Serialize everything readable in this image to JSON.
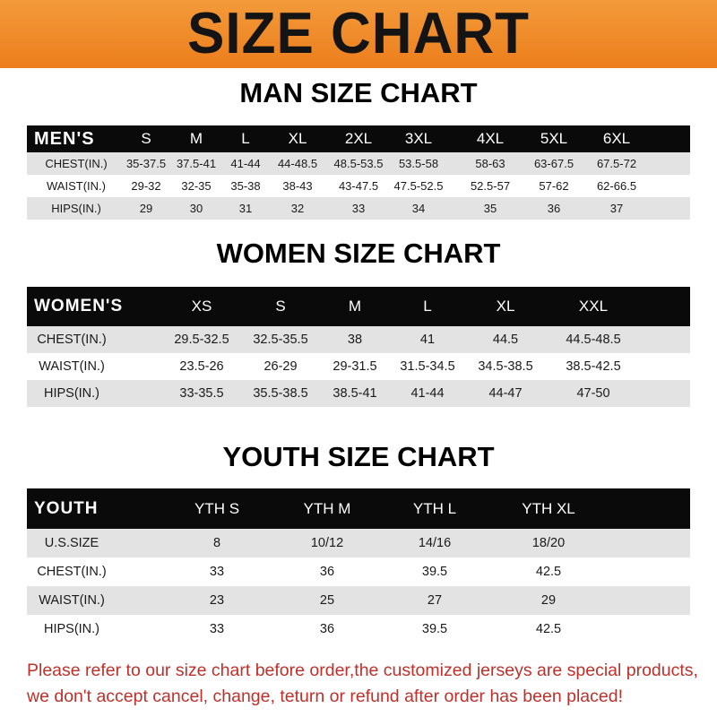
{
  "title": "SIZE CHART",
  "men": {
    "title": "MAN SIZE CHART",
    "header": [
      "MEN'S",
      "S",
      "M",
      "L",
      "XL",
      "2XL",
      "3XL",
      "4XL",
      "5XL",
      "6XL"
    ],
    "rows": [
      [
        "CHEST(IN.)",
        "35-37.5",
        "37.5-41",
        "41-44",
        "44-48.5",
        "48.5-53.5",
        "53.5-58",
        "58-63",
        "63-67.5",
        "67.5-72"
      ],
      [
        "WAIST(IN.)",
        "29-32",
        "32-35",
        "35-38",
        "38-43",
        "43-47.5",
        "47.5-52.5",
        "52.5-57",
        "57-62",
        "62-66.5"
      ],
      [
        "HIPS(IN.)",
        "29",
        "30",
        "31",
        "32",
        "33",
        "34",
        "35",
        "36",
        "37"
      ]
    ]
  },
  "women": {
    "title": "WOMEN SIZE CHART",
    "header": [
      "WOMEN'S",
      "XS",
      "S",
      "M",
      "L",
      "XL",
      "XXL"
    ],
    "rows": [
      [
        "CHEST(IN.)",
        "29.5-32.5",
        "32.5-35.5",
        "38",
        "41",
        "44.5",
        "44.5-48.5"
      ],
      [
        "WAIST(IN.)",
        "23.5-26",
        "26-29",
        "29-31.5",
        "31.5-34.5",
        "34.5-38.5",
        "38.5-42.5"
      ],
      [
        "HIPS(IN.)",
        "33-35.5",
        "35.5-38.5",
        "38.5-41",
        "41-44",
        "44-47",
        "47-50"
      ]
    ]
  },
  "youth": {
    "title": "YOUTH SIZE CHART",
    "header": [
      "YOUTH",
      "YTH S",
      "YTH M",
      "YTH L",
      "YTH XL"
    ],
    "rows": [
      [
        "U.S.SIZE",
        "8",
        "10/12",
        "14/16",
        "18/20"
      ],
      [
        "CHEST(IN.)",
        "33",
        "36",
        "39.5",
        "42.5"
      ],
      [
        "WAIST(IN.)",
        "23",
        "25",
        "27",
        "29"
      ],
      [
        "HIPS(IN.)",
        "33",
        "36",
        "39.5",
        "42.5"
      ]
    ]
  },
  "notice": [
    "Please refer to our size chart before order,the customized jerseys are special products,",
    "we don't accept cancel, change, teturn or refund after order has been placed!"
  ],
  "colors": {
    "banner": "#ef8a28",
    "header_row": "#0a0a0a",
    "stripe": "#e3e3e3",
    "notice": "#c0302a"
  }
}
